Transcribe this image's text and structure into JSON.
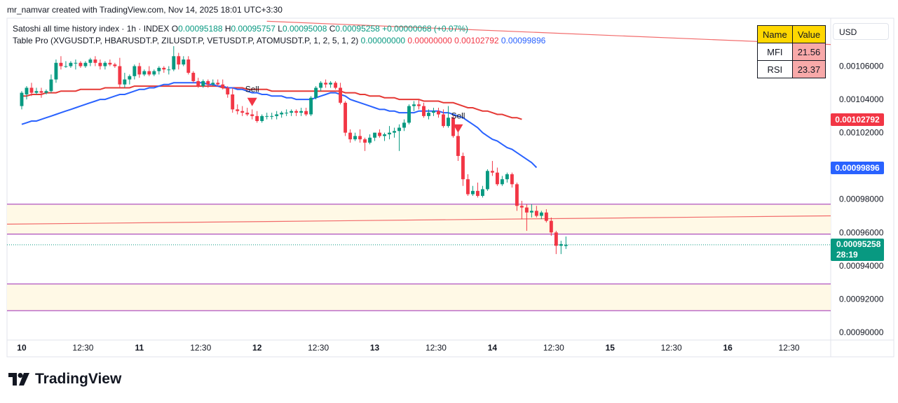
{
  "header": {
    "attribution": "mr_namvar created with TradingView.com, Nov 14, 2025 18:01 UTC+3:30",
    "symbol_line": "Satoshi all time history index · 1h · INDEX",
    "ohlc": {
      "o_label": "O",
      "o": "0.00095188",
      "h_label": "H",
      "h": "0.00095757",
      "l_label": "L",
      "l": "0.00095008",
      "c_label": "C",
      "c": "0.00095258",
      "change": "+0.00000068 (+0.07%)"
    },
    "indicator_line": "Table Pro (XVGUSDT.P, HBARUSDT.P, ZILUSDT.P, VETUSDT.P, ATOMUSDT.P, 1, 2, 5, 1, 2)",
    "indicator_values": [
      "0.00000000",
      "0.00000000",
      "0.00102792",
      "0.00099896"
    ]
  },
  "currency_button": "USD",
  "indicator_table": {
    "headers": [
      "Name",
      "Value"
    ],
    "rows": [
      {
        "name": "MFI",
        "value": "21.56"
      },
      {
        "name": "RSI",
        "value": "23.37"
      }
    ]
  },
  "price_tags": {
    "red_ma": "0.00102792",
    "blue_ma": "0.00099896",
    "last_price": "0.00095258",
    "countdown": "28:19"
  },
  "brand": "TradingView",
  "colors": {
    "up": "#089981",
    "down": "#f23645",
    "blue_ma": "#2962ff",
    "red_ma": "#e53935",
    "zone_line": "#9c27b0",
    "zone_fill": "#fff9e6",
    "trendline": "#f26b6b"
  },
  "chart_data": {
    "type": "candlestick",
    "ylim": [
      0.000897,
      0.001088
    ],
    "y_ticks": [
      0.00106,
      0.00104,
      0.00102,
      0.00098,
      0.00096,
      0.00094,
      0.00092,
      0.0009
    ],
    "y_tick_labels": [
      "0.00106000",
      "0.00104000",
      "0.00102000",
      "0.00098000",
      "0.00096000",
      "0.00094000",
      "0.00092000",
      "0.00090000"
    ],
    "x_labels": [
      {
        "label": "10",
        "bar": 0,
        "bold": true
      },
      {
        "label": "12:30",
        "bar": 12.5
      },
      {
        "label": "11",
        "bar": 24,
        "bold": true
      },
      {
        "label": "12:30",
        "bar": 36.5
      },
      {
        "label": "12",
        "bar": 48,
        "bold": true
      },
      {
        "label": "12:30",
        "bar": 60.5
      },
      {
        "label": "13",
        "bar": 72,
        "bold": true
      },
      {
        "label": "12:30",
        "bar": 84.5
      },
      {
        "label": "14",
        "bar": 96,
        "bold": true
      },
      {
        "label": "12:30",
        "bar": 108.5
      },
      {
        "label": "15",
        "bar": 120,
        "bold": true
      },
      {
        "label": "12:30",
        "bar": 132.5
      },
      {
        "label": "16",
        "bar": 144,
        "bold": true
      },
      {
        "label": "12:30",
        "bar": 156.5
      }
    ],
    "x_range": [
      -3,
      165
    ],
    "candles": [
      {
        "o": 0.001036,
        "h": 0.001045,
        "l": 0.001034,
        "c": 0.001044
      },
      {
        "o": 0.001043,
        "h": 0.001048,
        "l": 0.00104,
        "c": 0.001047
      },
      {
        "o": 0.001047,
        "h": 0.00105,
        "l": 0.001042,
        "c": 0.001044
      },
      {
        "o": 0.001044,
        "h": 0.001047,
        "l": 0.001043,
        "c": 0.001045
      },
      {
        "o": 0.001045,
        "h": 0.001047,
        "l": 0.001041,
        "c": 0.001044
      },
      {
        "o": 0.001044,
        "h": 0.001046,
        "l": 0.001043,
        "c": 0.001045
      },
      {
        "o": 0.001045,
        "h": 0.001055,
        "l": 0.001044,
        "c": 0.001052
      },
      {
        "o": 0.001052,
        "h": 0.001064,
        "l": 0.00105,
        "c": 0.001062
      },
      {
        "o": 0.001062,
        "h": 0.001066,
        "l": 0.001058,
        "c": 0.00106
      },
      {
        "o": 0.00106,
        "h": 0.001063,
        "l": 0.001059,
        "c": 0.00106
      },
      {
        "o": 0.00106,
        "h": 0.001063,
        "l": 0.001059,
        "c": 0.001062
      },
      {
        "o": 0.001062,
        "h": 0.001064,
        "l": 0.001058,
        "c": 0.001062
      },
      {
        "o": 0.001062,
        "h": 0.001063,
        "l": 0.001059,
        "c": 0.00106
      },
      {
        "o": 0.00106,
        "h": 0.001063,
        "l": 0.001059,
        "c": 0.001062
      },
      {
        "o": 0.001062,
        "h": 0.001065,
        "l": 0.00106,
        "c": 0.001064
      },
      {
        "o": 0.001064,
        "h": 0.001066,
        "l": 0.00106,
        "c": 0.001062
      },
      {
        "o": 0.001062,
        "h": 0.001064,
        "l": 0.001058,
        "c": 0.00106
      },
      {
        "o": 0.00106,
        "h": 0.001063,
        "l": 0.001058,
        "c": 0.001062
      },
      {
        "o": 0.001062,
        "h": 0.001064,
        "l": 0.00106,
        "c": 0.001061
      },
      {
        "o": 0.001061,
        "h": 0.001062,
        "l": 0.001059,
        "c": 0.00106
      },
      {
        "o": 0.00106,
        "h": 0.001065,
        "l": 0.001047,
        "c": 0.001049
      },
      {
        "o": 0.001049,
        "h": 0.001056,
        "l": 0.001047,
        "c": 0.001052
      },
      {
        "o": 0.001052,
        "h": 0.001055,
        "l": 0.001049,
        "c": 0.001054
      },
      {
        "o": 0.001054,
        "h": 0.001061,
        "l": 0.001052,
        "c": 0.00106
      },
      {
        "o": 0.00106,
        "h": 0.001062,
        "l": 0.001053,
        "c": 0.001055
      },
      {
        "o": 0.001055,
        "h": 0.001058,
        "l": 0.001054,
        "c": 0.001057
      },
      {
        "o": 0.001057,
        "h": 0.00106,
        "l": 0.001054,
        "c": 0.001055
      },
      {
        "o": 0.001055,
        "h": 0.001058,
        "l": 0.001054,
        "c": 0.001057
      },
      {
        "o": 0.001057,
        "h": 0.00106,
        "l": 0.001055,
        "c": 0.001059
      },
      {
        "o": 0.001059,
        "h": 0.00106,
        "l": 0.001056,
        "c": 0.001058
      },
      {
        "o": 0.001058,
        "h": 0.00106,
        "l": 0.001055,
        "c": 0.001058
      },
      {
        "o": 0.001058,
        "h": 0.001072,
        "l": 0.001057,
        "c": 0.001066
      },
      {
        "o": 0.001066,
        "h": 0.001068,
        "l": 0.001058,
        "c": 0.001061
      },
      {
        "o": 0.001061,
        "h": 0.001066,
        "l": 0.00106,
        "c": 0.001064
      },
      {
        "o": 0.001064,
        "h": 0.001066,
        "l": 0.001055,
        "c": 0.001056
      },
      {
        "o": 0.001056,
        "h": 0.001057,
        "l": 0.00105,
        "c": 0.001051
      },
      {
        "o": 0.001051,
        "h": 0.001053,
        "l": 0.001047,
        "c": 0.001048
      },
      {
        "o": 0.001048,
        "h": 0.001052,
        "l": 0.001047,
        "c": 0.001051
      },
      {
        "o": 0.001051,
        "h": 0.001052,
        "l": 0.001047,
        "c": 0.001049
      },
      {
        "o": 0.001049,
        "h": 0.001052,
        "l": 0.001048,
        "c": 0.00105
      },
      {
        "o": 0.00105,
        "h": 0.001052,
        "l": 0.001048,
        "c": 0.001049
      },
      {
        "o": 0.001049,
        "h": 0.001052,
        "l": 0.001046,
        "c": 0.001047
      },
      {
        "o": 0.001047,
        "h": 0.001048,
        "l": 0.001041,
        "c": 0.001043
      },
      {
        "o": 0.001043,
        "h": 0.001047,
        "l": 0.001032,
        "c": 0.001034
      },
      {
        "o": 0.001034,
        "h": 0.001037,
        "l": 0.001031,
        "c": 0.001033
      },
      {
        "o": 0.001033,
        "h": 0.001036,
        "l": 0.00103,
        "c": 0.001032
      },
      {
        "o": 0.001032,
        "h": 0.001035,
        "l": 0.00103,
        "c": 0.001031
      },
      {
        "o": 0.001031,
        "h": 0.001034,
        "l": 0.001028,
        "c": 0.00103
      },
      {
        "o": 0.00103,
        "h": 0.001033,
        "l": 0.001026,
        "c": 0.001027
      },
      {
        "o": 0.001027,
        "h": 0.001031,
        "l": 0.001026,
        "c": 0.00103
      },
      {
        "o": 0.00103,
        "h": 0.001032,
        "l": 0.001028,
        "c": 0.00103
      },
      {
        "o": 0.00103,
        "h": 0.001032,
        "l": 0.001028,
        "c": 0.00103
      },
      {
        "o": 0.00103,
        "h": 0.001033,
        "l": 0.001028,
        "c": 0.001031
      },
      {
        "o": 0.001031,
        "h": 0.001033,
        "l": 0.001029,
        "c": 0.001032
      },
      {
        "o": 0.001032,
        "h": 0.001034,
        "l": 0.00103,
        "c": 0.001032
      },
      {
        "o": 0.001032,
        "h": 0.001034,
        "l": 0.00103,
        "c": 0.001033
      },
      {
        "o": 0.001033,
        "h": 0.001034,
        "l": 0.00103,
        "c": 0.001032
      },
      {
        "o": 0.001032,
        "h": 0.001035,
        "l": 0.00103,
        "c": 0.001033
      },
      {
        "o": 0.001033,
        "h": 0.001035,
        "l": 0.00103,
        "c": 0.001031
      },
      {
        "o": 0.001031,
        "h": 0.001042,
        "l": 0.00103,
        "c": 0.001041
      },
      {
        "o": 0.001041,
        "h": 0.001048,
        "l": 0.00104,
        "c": 0.001047
      },
      {
        "o": 0.001047,
        "h": 0.001051,
        "l": 0.001045,
        "c": 0.00105
      },
      {
        "o": 0.00105,
        "h": 0.001052,
        "l": 0.001047,
        "c": 0.001049
      },
      {
        "o": 0.001049,
        "h": 0.001051,
        "l": 0.001047,
        "c": 0.00105
      },
      {
        "o": 0.00105,
        "h": 0.001051,
        "l": 0.001046,
        "c": 0.001047
      },
      {
        "o": 0.001047,
        "h": 0.00105,
        "l": 0.001037,
        "c": 0.001038
      },
      {
        "o": 0.001038,
        "h": 0.001039,
        "l": 0.001018,
        "c": 0.00102
      },
      {
        "o": 0.00102,
        "h": 0.001022,
        "l": 0.001014,
        "c": 0.001016
      },
      {
        "o": 0.001016,
        "h": 0.00102,
        "l": 0.001015,
        "c": 0.001018
      },
      {
        "o": 0.001018,
        "h": 0.001022,
        "l": 0.001014,
        "c": 0.001016
      },
      {
        "o": 0.001016,
        "h": 0.001017,
        "l": 0.001009,
        "c": 0.001014
      },
      {
        "o": 0.001014,
        "h": 0.001019,
        "l": 0.001013,
        "c": 0.001017
      },
      {
        "o": 0.001017,
        "h": 0.00102,
        "l": 0.001015,
        "c": 0.00102
      },
      {
        "o": 0.00102,
        "h": 0.001022,
        "l": 0.001017,
        "c": 0.001018
      },
      {
        "o": 0.001018,
        "h": 0.00102,
        "l": 0.001015,
        "c": 0.001019
      },
      {
        "o": 0.001019,
        "h": 0.001024,
        "l": 0.001016,
        "c": 0.00102
      },
      {
        "o": 0.00102,
        "h": 0.001023,
        "l": 0.001017,
        "c": 0.001021
      },
      {
        "o": 0.001021,
        "h": 0.001025,
        "l": 0.001009,
        "c": 0.001023
      },
      {
        "o": 0.001023,
        "h": 0.001028,
        "l": 0.001021,
        "c": 0.001026
      },
      {
        "o": 0.001026,
        "h": 0.001037,
        "l": 0.001025,
        "c": 0.001036
      },
      {
        "o": 0.001036,
        "h": 0.001039,
        "l": 0.001033,
        "c": 0.001037
      },
      {
        "o": 0.001037,
        "h": 0.00104,
        "l": 0.001034,
        "c": 0.001036
      },
      {
        "o": 0.001036,
        "h": 0.001038,
        "l": 0.001029,
        "c": 0.00103
      },
      {
        "o": 0.00103,
        "h": 0.001034,
        "l": 0.001028,
        "c": 0.001032
      },
      {
        "o": 0.001032,
        "h": 0.001035,
        "l": 0.00103,
        "c": 0.001033
      },
      {
        "o": 0.001033,
        "h": 0.001035,
        "l": 0.001029,
        "c": 0.001031
      },
      {
        "o": 0.001031,
        "h": 0.001034,
        "l": 0.001023,
        "c": 0.001024
      },
      {
        "o": 0.001024,
        "h": 0.001036,
        "l": 0.001023,
        "c": 0.001029
      },
      {
        "o": 0.001029,
        "h": 0.00103,
        "l": 0.001017,
        "c": 0.001018
      },
      {
        "o": 0.001018,
        "h": 0.001021,
        "l": 0.001003,
        "c": 0.001006
      },
      {
        "o": 0.001006,
        "h": 0.001008,
        "l": 0.000988,
        "c": 0.000992
      },
      {
        "o": 0.000992,
        "h": 0.000995,
        "l": 0.000982,
        "c": 0.000983
      },
      {
        "o": 0.000983,
        "h": 0.000988,
        "l": 0.000982,
        "c": 0.000985
      },
      {
        "o": 0.000985,
        "h": 0.00099,
        "l": 0.000981,
        "c": 0.000982
      },
      {
        "o": 0.000982,
        "h": 0.000988,
        "l": 0.000981,
        "c": 0.000986
      },
      {
        "o": 0.000986,
        "h": 0.000998,
        "l": 0.000985,
        "c": 0.000997
      },
      {
        "o": 0.000997,
        "h": 0.001003,
        "l": 0.000994,
        "c": 0.000996
      },
      {
        "o": 0.000996,
        "h": 0.000999,
        "l": 0.000988,
        "c": 0.000989
      },
      {
        "o": 0.000989,
        "h": 0.000994,
        "l": 0.000988,
        "c": 0.000992
      },
      {
        "o": 0.000992,
        "h": 0.000996,
        "l": 0.00099,
        "c": 0.000995
      },
      {
        "o": 0.000995,
        "h": 0.000996,
        "l": 0.000987,
        "c": 0.000989
      },
      {
        "o": 0.000989,
        "h": 0.00099,
        "l": 0.000973,
        "c": 0.000976
      },
      {
        "o": 0.000976,
        "h": 0.000979,
        "l": 0.000968,
        "c": 0.000975
      },
      {
        "o": 0.000975,
        "h": 0.000977,
        "l": 0.000961,
        "c": 0.000972
      },
      {
        "o": 0.000972,
        "h": 0.000977,
        "l": 0.000969,
        "c": 0.000973
      },
      {
        "o": 0.000973,
        "h": 0.000976,
        "l": 0.000969,
        "c": 0.00097
      },
      {
        "o": 0.00097,
        "h": 0.000973,
        "l": 0.000968,
        "c": 0.000972
      },
      {
        "o": 0.000972,
        "h": 0.000974,
        "l": 0.000966,
        "c": 0.000967
      },
      {
        "o": 0.000967,
        "h": 0.000969,
        "l": 0.000958,
        "c": 0.00096
      },
      {
        "o": 0.00096,
        "h": 0.000961,
        "l": 0.000947,
        "c": 0.000952
      },
      {
        "o": 0.000952,
        "h": 0.000955,
        "l": 0.000947,
        "c": 0.000953
      },
      {
        "o": 0.00095188,
        "h": 0.00095757,
        "l": 0.00095008,
        "c": 0.00095258
      }
    ],
    "ma_red": {
      "name": "",
      "start_bar": 0,
      "values": [
        0.001042,
        0.001042,
        0.001043,
        0.001043,
        0.001043,
        0.001044,
        0.001044,
        0.001044,
        0.001045,
        0.001045,
        0.001045,
        0.001045,
        0.001046,
        0.001046,
        0.001046,
        0.001046,
        0.001046,
        0.001047,
        0.001047,
        0.001047,
        0.001047,
        0.001047,
        0.001047,
        0.001048,
        0.001048,
        0.001048,
        0.001048,
        0.001048,
        0.001048,
        0.001048,
        0.001048,
        0.001048,
        0.001048,
        0.001048,
        0.001048,
        0.001048,
        0.001048,
        0.001048,
        0.001048,
        0.001048,
        0.001048,
        0.001047,
        0.001047,
        0.001047,
        0.001047,
        0.001047,
        0.001046,
        0.001046,
        0.001046,
        0.001046,
        0.001046,
        0.001045,
        0.001045,
        0.001045,
        0.001045,
        0.001045,
        0.001045,
        0.001045,
        0.001045,
        0.001045,
        0.001045,
        0.001045,
        0.001045,
        0.001045,
        0.001045,
        0.001045,
        0.001044,
        0.001044,
        0.001044,
        0.001043,
        0.001043,
        0.001042,
        0.001042,
        0.001042,
        0.001041,
        0.001041,
        0.001041,
        0.00104,
        0.00104,
        0.00104,
        0.00104,
        0.00104,
        0.001039,
        0.001039,
        0.001039,
        0.001039,
        0.001038,
        0.001038,
        0.001038,
        0.001037,
        0.001036,
        0.001035,
        0.001035,
        0.001034,
        0.001033,
        0.001033,
        0.001032,
        0.001031,
        0.001031,
        0.00103,
        0.001029,
        0.001029,
        0.001028
      ]
    },
    "ma_blue": {
      "name": "",
      "start_bar": 0,
      "values": [
        0.001025,
        0.001026,
        0.001027,
        0.001027,
        0.001028,
        0.001029,
        0.00103,
        0.001031,
        0.001032,
        0.001033,
        0.001034,
        0.001035,
        0.001036,
        0.001037,
        0.001038,
        0.001039,
        0.00104,
        0.00104,
        0.001041,
        0.001042,
        0.001043,
        0.001043,
        0.001044,
        0.001045,
        0.001046,
        0.001046,
        0.001047,
        0.001047,
        0.001048,
        0.001049,
        0.001049,
        0.00105,
        0.00105,
        0.00105,
        0.00105,
        0.00105,
        0.00105,
        0.00105,
        0.001049,
        0.001049,
        0.001048,
        0.001048,
        0.001047,
        0.001047,
        0.001046,
        0.001046,
        0.001045,
        0.001044,
        0.001044,
        0.001043,
        0.001043,
        0.001042,
        0.001042,
        0.001042,
        0.001041,
        0.001041,
        0.00104,
        0.00104,
        0.00104,
        0.00104,
        0.001041,
        0.001042,
        0.001043,
        0.001044,
        0.001044,
        0.001043,
        0.001042,
        0.00104,
        0.001039,
        0.001038,
        0.001037,
        0.001036,
        0.001035,
        0.001034,
        0.001034,
        0.001033,
        0.001033,
        0.001032,
        0.001032,
        0.001032,
        0.001032,
        0.001033,
        0.001033,
        0.001033,
        0.001033,
        0.001033,
        0.001032,
        0.001032,
        0.001031,
        0.00103,
        0.001029,
        0.001027,
        0.001025,
        0.001023,
        0.00102,
        0.001018,
        0.001016,
        0.001015,
        0.001013,
        0.001011,
        0.00101,
        0.001008,
        0.001006,
        0.001004,
        0.001002,
        0.000999
      ]
    },
    "zones": [
      {
        "top": 0.000977,
        "bottom": 0.000959
      },
      {
        "top": 0.000929,
        "bottom": 0.000913
      }
    ],
    "trendlines": [
      {
        "bar1": -3,
        "y1": 0.000965,
        "bar2": 165,
        "y2": 0.00097
      },
      {
        "bar1": 50,
        "y1": 0.001087,
        "bar2": 165,
        "y2": 0.001073
      }
    ],
    "last_price_line": 0.00095258,
    "signals": [
      {
        "label": "Sell",
        "bar": 47,
        "y": 0.001041
      },
      {
        "label": "Sell",
        "bar": 89,
        "y": 0.001025
      }
    ]
  }
}
